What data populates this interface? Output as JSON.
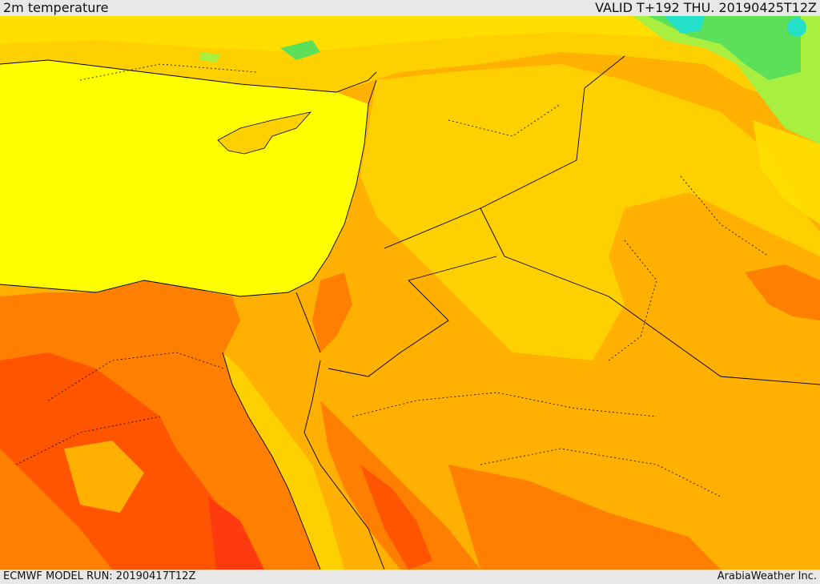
{
  "header": {
    "title": "2m temperature",
    "valid_time": "VALID T+192 THU. 20190425T12Z"
  },
  "footer": {
    "model_run": "ECMWF MODEL RUN: 20190417T12Z",
    "credit": "ArabiaWeather Inc."
  },
  "colors": {
    "sea": "#ffff00",
    "cool": "#ffe000",
    "mild": "#ffd000",
    "warm": "#ffb000",
    "hot": "#ff7f00",
    "very_hot": "#ff5500",
    "extreme": "#ff3a0f",
    "cold_green": "#a8ef3f",
    "colder": "#5ce05a",
    "coldest": "#25e0c8"
  }
}
